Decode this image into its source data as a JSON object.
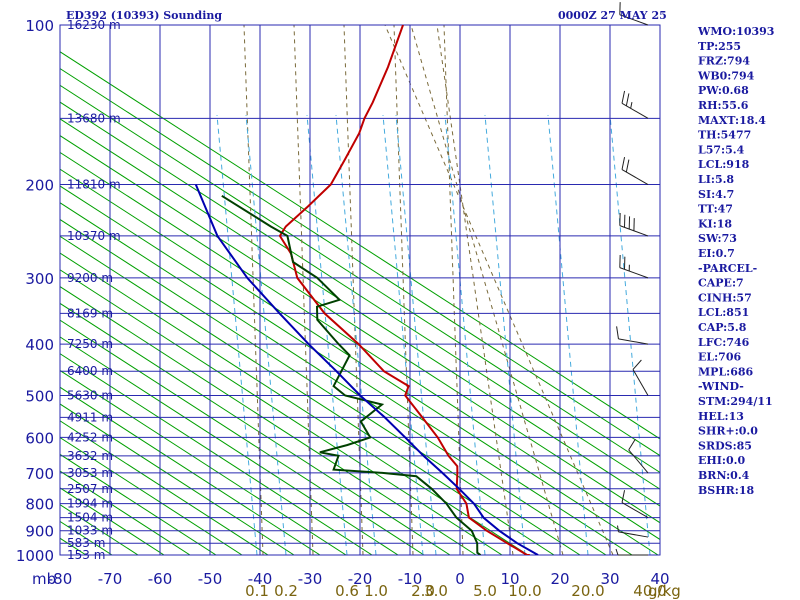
{
  "header": {
    "station": "ED392 (10393) Sounding",
    "time": "0000Z 27 MAY 25"
  },
  "colors": {
    "frame": "#2a2ab0",
    "isotherm": "#2a2ab0",
    "isobar": "#2a2ab0",
    "dry_adiabat": "#00a000",
    "moist_adiabat": "#7a6a3a",
    "mixing_ratio": "#44aadd",
    "temperature": "#c00000",
    "dewpoint": "#004000",
    "parcel": "#0000b0",
    "wind_barb": "#202020",
    "mixing_label": "#7a6410",
    "text": "#1a1aa0"
  },
  "axes": {
    "pressure_unit": "mb",
    "mixing_unit": "g/kg",
    "pressure_levels": [
      100,
      200,
      300,
      400,
      500,
      600,
      700,
      800,
      900,
      1000
    ],
    "temperature_ticks": [
      "-80",
      "-70",
      "-60",
      "-50",
      "-40",
      "-30",
      "-20",
      "-10",
      "0",
      "10",
      "20",
      "30",
      "40"
    ],
    "mixing_ratio_labels": [
      "0.1",
      "0.2",
      "0.6",
      "1.0",
      "2.0",
      "3.0",
      "5.0",
      "10.0",
      "20.0",
      "40.0"
    ]
  },
  "height_labels": [
    {
      "p": 100,
      "label": "16230 m"
    },
    {
      "p": 150,
      "label": "13680 m"
    },
    {
      "p": 200,
      "label": "11810 m"
    },
    {
      "p": 250,
      "label": "10370 m"
    },
    {
      "p": 300,
      "label": "9200 m"
    },
    {
      "p": 350,
      "label": "8169 m"
    },
    {
      "p": 400,
      "label": "7250 m"
    },
    {
      "p": 450,
      "label": "6400 m"
    },
    {
      "p": 500,
      "label": "5630 m"
    },
    {
      "p": 550,
      "label": "4911 m"
    },
    {
      "p": 600,
      "label": "4252 m"
    },
    {
      "p": 650,
      "label": "3632 m"
    },
    {
      "p": 700,
      "label": "3053 m"
    },
    {
      "p": 750,
      "label": "2507 m"
    },
    {
      "p": 800,
      "label": "1994 m"
    },
    {
      "p": 850,
      "label": "1504 m"
    },
    {
      "p": 900,
      "label": "1033 m"
    },
    {
      "p": 950,
      "label": "583 m"
    },
    {
      "p": 1000,
      "label": "153 m"
    }
  ],
  "indices": [
    "WMO:10393",
    "TP:255",
    "FRZ:794",
    "WB0:794",
    "PW:0.68",
    "RH:55.6",
    "MAXT:18.4",
    "TH:5477",
    "L57:5.4",
    "LCL:918",
    "LI:5.8",
    "SI:4.7",
    "TT:47",
    "KI:18",
    "SW:73",
    "EI:0.7",
    "-PARCEL-",
    "CAPE:7",
    "CINH:57",
    "LCL:851",
    "CAP:5.8",
    "LFC:746",
    "EL:706",
    "MPL:686",
    "-WIND-",
    "STM:294/11",
    "HEL:13",
    "SHR+:0.0",
    "SRDS:85",
    "EHI:0.0",
    "BRN:0.4",
    "BSHR:18"
  ],
  "chart_data": {
    "type": "line",
    "title": "ED392 (10393) Sounding",
    "subtitle": "0000Z 27 MAY 25",
    "xlabel": "",
    "ylabel": "mb",
    "xlim": [
      -80,
      40
    ],
    "ylim": [
      1000,
      100
    ],
    "y_scale": "log",
    "skew": true,
    "grid": true,
    "series": [
      {
        "key": "temperature",
        "points": [
          [
            1008,
            13.5
          ],
          [
            1000,
            12.8
          ],
          [
            970,
            10
          ],
          [
            950,
            8
          ],
          [
            900,
            3
          ],
          [
            850,
            -1.5
          ],
          [
            800,
            -3
          ],
          [
            750,
            -6
          ],
          [
            700,
            -7
          ],
          [
            680,
            -7.5
          ],
          [
            650,
            -10
          ],
          [
            600,
            -13.5
          ],
          [
            550,
            -18
          ],
          [
            500,
            -23
          ],
          [
            480,
            -23
          ],
          [
            450,
            -29
          ],
          [
            400,
            -36
          ],
          [
            350,
            -45
          ],
          [
            300,
            -53
          ],
          [
            270,
            -56
          ],
          [
            250,
            -59.5
          ],
          [
            240,
            -59
          ],
          [
            220,
            -56
          ],
          [
            200,
            -53
          ],
          [
            180,
            -52
          ],
          [
            160,
            -51
          ],
          [
            150,
            -51
          ],
          [
            140,
            -50.5
          ],
          [
            120,
            -50
          ],
          [
            100,
            -50
          ]
        ]
      },
      {
        "key": "dewpoint",
        "points": [
          [
            1000,
            3.5
          ],
          [
            990,
            2.7
          ],
          [
            950,
            2
          ],
          [
            900,
            0
          ],
          [
            850,
            -4
          ],
          [
            800,
            -7
          ],
          [
            750,
            -11
          ],
          [
            710,
            -15
          ],
          [
            700,
            -22
          ],
          [
            690,
            -32
          ],
          [
            670,
            -32
          ],
          [
            650,
            -32
          ],
          [
            640,
            -36
          ],
          [
            620,
            -31
          ],
          [
            600,
            -27
          ],
          [
            560,
            -30
          ],
          [
            520,
            -27
          ],
          [
            500,
            -35
          ],
          [
            480,
            -38
          ],
          [
            420,
            -37
          ],
          [
            400,
            -40
          ],
          [
            360,
            -46
          ],
          [
            340,
            -47
          ],
          [
            330,
            -43
          ],
          [
            300,
            -49
          ],
          [
            280,
            -55
          ],
          [
            250,
            -58
          ],
          [
            240,
            -62
          ],
          [
            210,
            -74
          ]
        ]
      },
      {
        "key": "parcel",
        "points": [
          [
            1000,
            15
          ],
          [
            950,
            10
          ],
          [
            900,
            5.5
          ],
          [
            851,
            1.5
          ],
          [
            800,
            -1.5
          ],
          [
            750,
            -5.5
          ],
          [
            700,
            -10
          ],
          [
            650,
            -15
          ],
          [
            600,
            -20
          ],
          [
            550,
            -25.5
          ],
          [
            500,
            -32
          ],
          [
            450,
            -38.5
          ],
          [
            400,
            -46
          ],
          [
            350,
            -54
          ],
          [
            300,
            -63
          ],
          [
            250,
            -72
          ],
          [
            200,
            -80
          ]
        ]
      }
    ],
    "wind_barbs": [
      {
        "p": 100,
        "dir": 290,
        "spd": 10
      },
      {
        "p": 150,
        "dir": 300,
        "spd": 25
      },
      {
        "p": 200,
        "dir": 300,
        "spd": 20
      },
      {
        "p": 250,
        "dir": 290,
        "spd": 40
      },
      {
        "p": 300,
        "dir": 290,
        "spd": 25
      },
      {
        "p": 400,
        "dir": 280,
        "spd": 10
      },
      {
        "p": 500,
        "dir": 330,
        "spd": 10
      },
      {
        "p": 700,
        "dir": 320,
        "spd": 10
      },
      {
        "p": 850,
        "dir": 300,
        "spd": 10
      },
      {
        "p": 925,
        "dir": 280,
        "spd": 5
      },
      {
        "p": 1000,
        "dir": 270,
        "spd": 5
      }
    ]
  }
}
